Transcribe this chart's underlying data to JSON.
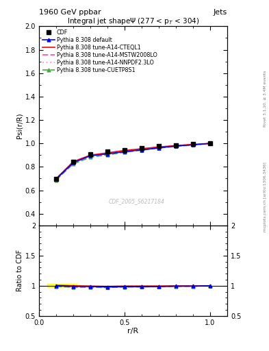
{
  "title_top": "1960 GeV ppbar",
  "title_right": "Jets",
  "main_title": "Integral jet shapeΨ (277 < p_{T} < 304)",
  "xlabel": "r/R",
  "ylabel_main": "Psi(r/R)",
  "ylabel_ratio": "Ratio to CDF",
  "right_label_top": "Rivet 3.1.10, ≥ 3.4M events",
  "right_label_bot": "mcplots.cern.ch [arXiv:1306.3436]",
  "watermark": "CDF_2005_S6217184",
  "cdf_x": [
    0.1,
    0.2,
    0.3,
    0.4,
    0.5,
    0.6,
    0.7,
    0.8,
    0.9,
    1.0
  ],
  "cdf_y": [
    0.695,
    0.845,
    0.905,
    0.93,
    0.945,
    0.96,
    0.975,
    0.985,
    0.995,
    1.0
  ],
  "default_x": [
    0.1,
    0.2,
    0.3,
    0.4,
    0.5,
    0.6,
    0.7,
    0.8,
    0.9,
    1.0
  ],
  "default_y": [
    0.695,
    0.835,
    0.895,
    0.91,
    0.93,
    0.945,
    0.962,
    0.978,
    0.988,
    1.0
  ],
  "cteql1_x": [
    0.1,
    0.2,
    0.3,
    0.4,
    0.5,
    0.6,
    0.7,
    0.8,
    0.9,
    1.0
  ],
  "cteql1_y": [
    0.7,
    0.845,
    0.9,
    0.92,
    0.94,
    0.955,
    0.97,
    0.982,
    0.992,
    1.0
  ],
  "mstw_x": [
    0.1,
    0.2,
    0.3,
    0.4,
    0.5,
    0.6,
    0.7,
    0.8,
    0.9,
    1.0
  ],
  "mstw_y": [
    0.695,
    0.838,
    0.892,
    0.91,
    0.932,
    0.948,
    0.965,
    0.978,
    0.99,
    1.0
  ],
  "nnpdf_x": [
    0.1,
    0.2,
    0.3,
    0.4,
    0.5,
    0.6,
    0.7,
    0.8,
    0.9,
    1.0
  ],
  "nnpdf_y": [
    0.698,
    0.842,
    0.896,
    0.915,
    0.936,
    0.952,
    0.968,
    0.98,
    0.991,
    1.0
  ],
  "cuetp_x": [
    0.1,
    0.2,
    0.3,
    0.4,
    0.5,
    0.6,
    0.7,
    0.8,
    0.9,
    1.0
  ],
  "cuetp_y": [
    0.688,
    0.825,
    0.882,
    0.902,
    0.925,
    0.942,
    0.96,
    0.975,
    0.987,
    1.0
  ],
  "ratio_x": [
    0.1,
    0.2,
    0.3,
    0.4,
    0.5,
    0.6,
    0.7,
    0.8,
    0.9,
    1.0
  ],
  "ratio_default": [
    1.0,
    0.988,
    0.989,
    0.978,
    0.984,
    0.984,
    0.987,
    0.993,
    0.993,
    1.0
  ],
  "ratio_cteql1": [
    1.007,
    1.0,
    0.994,
    0.989,
    0.994,
    0.995,
    0.995,
    0.997,
    0.997,
    1.0
  ],
  "ratio_mstw": [
    1.0,
    0.992,
    0.986,
    0.978,
    0.986,
    0.987,
    0.99,
    0.993,
    0.995,
    1.0
  ],
  "ratio_nnpdf": [
    1.004,
    0.997,
    0.99,
    0.984,
    0.991,
    0.992,
    0.993,
    0.995,
    0.996,
    1.0
  ],
  "ratio_cuetp": [
    0.99,
    0.976,
    0.974,
    0.97,
    0.979,
    0.981,
    0.985,
    0.99,
    0.992,
    1.0
  ],
  "color_cdf": "black",
  "color_default": "#0000ff",
  "color_cteql1": "#ff0000",
  "color_mstw": "#ff44aa",
  "color_nnpdf": "#ffaacc",
  "color_cuetp": "#44aa44",
  "ylim_main": [
    0.3,
    2.0
  ],
  "ylim_ratio": [
    0.5,
    2.0
  ],
  "yticks_main": [
    0.4,
    0.6,
    0.8,
    1.0,
    1.2,
    1.4,
    1.6,
    1.8,
    2.0
  ],
  "yticks_ratio": [
    0.5,
    1.0,
    1.5,
    2.0
  ],
  "xlim": [
    0.0,
    1.1
  ]
}
